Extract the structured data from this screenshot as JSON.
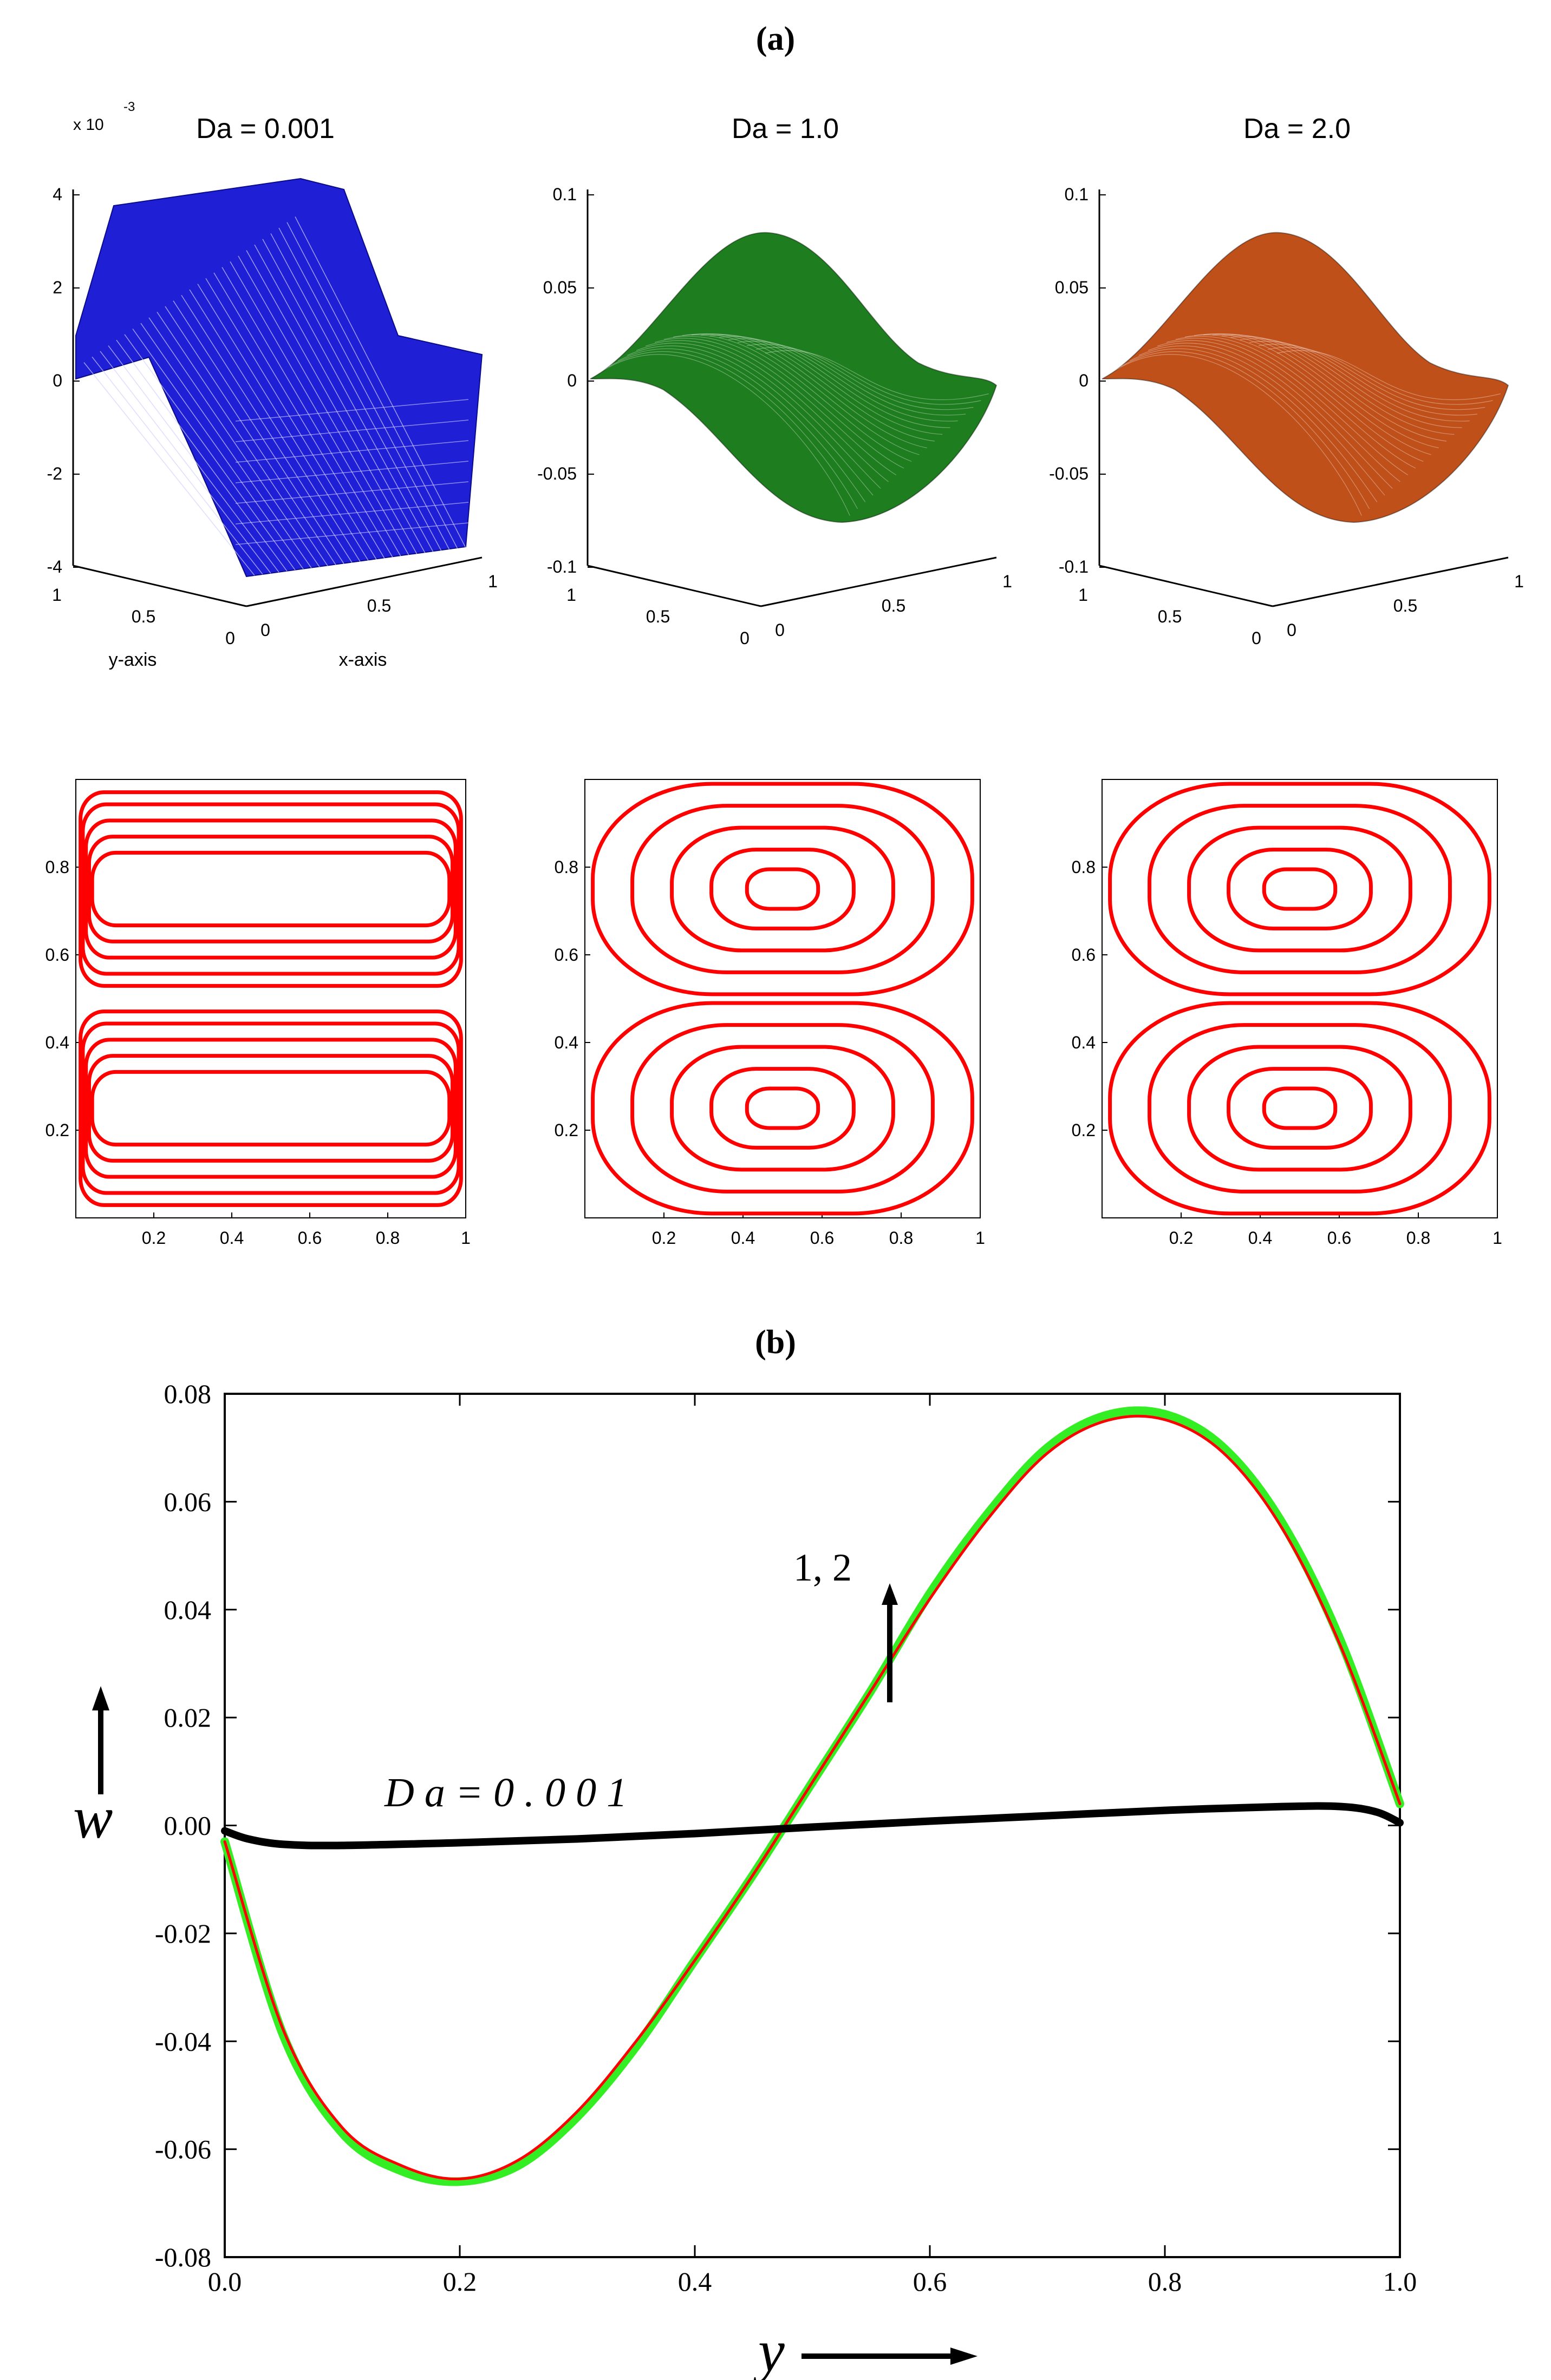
{
  "panel_a_label": "(a)",
  "panel_b_label": "(b)",
  "chart_data": [
    {
      "type": "surface",
      "title": "Da = 0.001",
      "exponent_label": "x 10",
      "exponent_value": "-3",
      "zlim": [
        -4,
        4
      ],
      "zticks": [
        "4",
        "2",
        "0",
        "-2",
        "-4"
      ],
      "yticks": [
        "1",
        "0.5",
        "0"
      ],
      "xticks": [
        "0",
        "0.5",
        "1"
      ],
      "xlabel": "x-axis",
      "ylabel": "y-axis",
      "color": "#1f1fd6"
    },
    {
      "type": "surface",
      "title": "Da = 1.0",
      "zlim": [
        -0.1,
        0.1
      ],
      "zticks": [
        "0.1",
        "0.05",
        "0",
        "-0.05",
        "-0.1"
      ],
      "yticks": [
        "1",
        "0.5",
        "0"
      ],
      "xticks": [
        "0",
        "0.5",
        "1"
      ],
      "color": "#1e7d1e"
    },
    {
      "type": "surface",
      "title": "Da = 2.0",
      "zlim": [
        -0.1,
        0.1
      ],
      "zticks": [
        "0.1",
        "0.05",
        "0",
        "-0.05",
        "-0.1"
      ],
      "yticks": [
        "1",
        "0.5",
        "0"
      ],
      "xticks": [
        "0",
        "0.5",
        "1"
      ],
      "color": "#c0501a"
    },
    {
      "type": "contour",
      "case": "Da = 0.001",
      "xlim": [
        0,
        1
      ],
      "ylim": [
        0,
        1
      ],
      "xticks": [
        "0.2",
        "0.4",
        "0.6",
        "0.8",
        "1"
      ],
      "yticks": [
        "0.2",
        "0.4",
        "0.6",
        "0.8"
      ],
      "levels": [
        0.05,
        0.2,
        0.4,
        0.6,
        0.8
      ],
      "color": "#ff0000"
    },
    {
      "type": "contour",
      "case": "Da = 1.0",
      "xlim": [
        0,
        1
      ],
      "ylim": [
        0,
        1
      ],
      "xticks": [
        "0.2",
        "0.4",
        "0.6",
        "0.8",
        "1"
      ],
      "yticks": [
        "0.2",
        "0.4",
        "0.6",
        "0.8"
      ],
      "levels": [
        0.12,
        0.32,
        0.52,
        0.72,
        0.9
      ],
      "color": "#ff0000"
    },
    {
      "type": "contour",
      "case": "Da = 2.0",
      "xlim": [
        0,
        1
      ],
      "ylim": [
        0,
        1
      ],
      "xticks": [
        "0.2",
        "0.4",
        "0.6",
        "0.8",
        "1"
      ],
      "yticks": [
        "0.2",
        "0.4",
        "0.6",
        "0.8"
      ],
      "levels": [
        0.12,
        0.32,
        0.52,
        0.72,
        0.9
      ],
      "color": "#ff0000"
    },
    {
      "type": "line",
      "xlabel": "y",
      "ylabel": "w",
      "xlim": [
        0,
        1
      ],
      "ylim": [
        -0.08,
        0.08
      ],
      "xticks": [
        "0.0",
        "0.2",
        "0.4",
        "0.6",
        "0.8",
        "1.0"
      ],
      "yticks": [
        "0.08",
        "0.06",
        "0.04",
        "0.02",
        "0.00",
        "-0.02",
        "-0.04",
        "-0.06",
        "-0.08"
      ],
      "annotations": [
        "D a  =  0 . 0 0 1",
        "1,   2"
      ],
      "series": [
        {
          "name": "Da = 0.001",
          "color": "#000000",
          "x": [
            0,
            0.02,
            0.05,
            0.1,
            0.2,
            0.3,
            0.4,
            0.5,
            0.6,
            0.7,
            0.8,
            0.9,
            0.95,
            0.98,
            1.0
          ],
          "y": [
            -0.001,
            -0.0025,
            -0.0035,
            -0.0037,
            -0.0032,
            -0.0025,
            -0.0015,
            -0.0003,
            0.0008,
            0.0018,
            0.0028,
            0.0035,
            0.0035,
            0.0025,
            0.0005
          ]
        },
        {
          "name": "Da = 1.0",
          "color": "#ff0000",
          "x": [
            0,
            0.05,
            0.1,
            0.15,
            0.2,
            0.25,
            0.3,
            0.35,
            0.4,
            0.45,
            0.5,
            0.55,
            0.6,
            0.65,
            0.7,
            0.75,
            0.8,
            0.85,
            0.9,
            0.95,
            1.0
          ],
          "y": [
            -0.003,
            -0.038,
            -0.056,
            -0.063,
            -0.0655,
            -0.062,
            -0.053,
            -0.04,
            -0.025,
            -0.009,
            0.008,
            0.025,
            0.042,
            0.057,
            0.069,
            0.075,
            0.0752,
            0.069,
            0.055,
            0.033,
            0.004
          ]
        },
        {
          "name": "Da = 2.0",
          "color": "#33ee22",
          "x": [
            0,
            0.05,
            0.1,
            0.15,
            0.2,
            0.25,
            0.3,
            0.35,
            0.4,
            0.45,
            0.5,
            0.55,
            0.6,
            0.65,
            0.7,
            0.75,
            0.8,
            0.85,
            0.9,
            0.95,
            1.0
          ],
          "y": [
            -0.003,
            -0.039,
            -0.057,
            -0.064,
            -0.066,
            -0.063,
            -0.054,
            -0.041,
            -0.025,
            -0.009,
            0.008,
            0.025,
            0.043,
            0.058,
            0.07,
            0.076,
            0.0762,
            0.07,
            0.056,
            0.034,
            0.004
          ]
        }
      ]
    }
  ]
}
